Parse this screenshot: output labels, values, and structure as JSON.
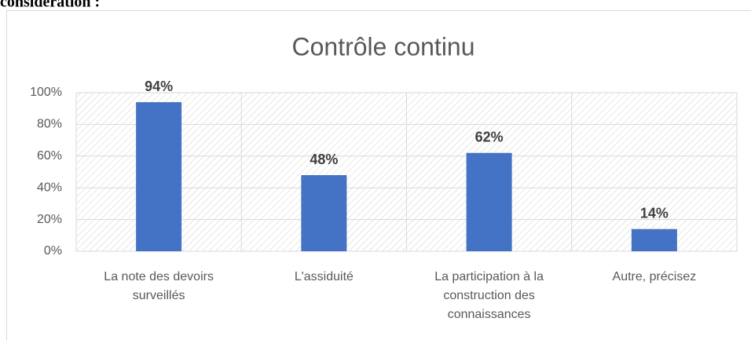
{
  "heading": "considération :",
  "chart_data": {
    "type": "bar",
    "title": "Contrôle continu",
    "categories": [
      "La note des devoirs surveillés",
      "L'assiduité",
      "La participation à la construction des connaissances",
      "Autre, précisez"
    ],
    "values": [
      94,
      48,
      62,
      14
    ],
    "value_labels": [
      "94%",
      "48%",
      "62%",
      "14%"
    ],
    "color": "#4472c4",
    "ylim": [
      0,
      100
    ],
    "yticks": [
      {
        "value": 0,
        "label": "0%"
      },
      {
        "value": 20,
        "label": "20%"
      },
      {
        "value": 40,
        "label": "40%"
      },
      {
        "value": 60,
        "label": "60%"
      },
      {
        "value": 80,
        "label": "80%"
      },
      {
        "value": 100,
        "label": "100%"
      }
    ],
    "grid": true
  }
}
